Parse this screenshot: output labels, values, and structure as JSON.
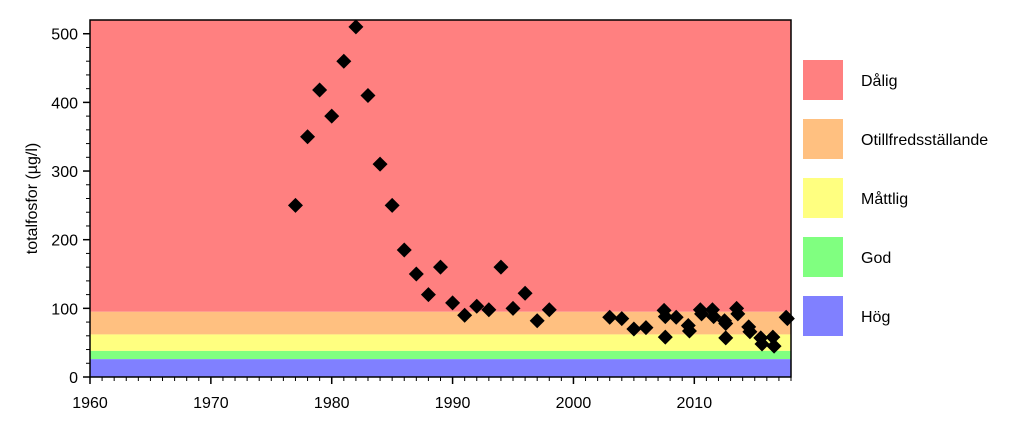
{
  "chart_data": {
    "type": "scatter",
    "ylabel": "totalfosfor (µg/l)",
    "xlim": [
      1960,
      2018
    ],
    "ylim": [
      0,
      520
    ],
    "x_ticks": [
      "1960",
      "1970",
      "1980",
      "1990",
      "2000",
      "2010"
    ],
    "y_ticks": [
      "0",
      "100",
      "200",
      "300",
      "400",
      "500"
    ],
    "grid": false,
    "legend_position": "right",
    "classes": [
      {
        "name": "Dålig",
        "from": 95,
        "to": 520,
        "color": "#ff8080"
      },
      {
        "name": "Otillfredsställande",
        "from": 62,
        "to": 95,
        "color": "#ffc080"
      },
      {
        "name": "Måttlig",
        "from": 38,
        "to": 62,
        "color": "#ffff80"
      },
      {
        "name": "God",
        "from": 26,
        "to": 38,
        "color": "#80ff80"
      },
      {
        "name": "Hög",
        "from": 0,
        "to": 26,
        "color": "#8080ff"
      }
    ],
    "marker_color": "#000000",
    "points": [
      {
        "x": 1977,
        "y": 250
      },
      {
        "x": 1978,
        "y": 350
      },
      {
        "x": 1979,
        "y": 418
      },
      {
        "x": 1980,
        "y": 380
      },
      {
        "x": 1981,
        "y": 460
      },
      {
        "x": 1982,
        "y": 510
      },
      {
        "x": 1983,
        "y": 410
      },
      {
        "x": 1984,
        "y": 310
      },
      {
        "x": 1985,
        "y": 250
      },
      {
        "x": 1986,
        "y": 185
      },
      {
        "x": 1987,
        "y": 150
      },
      {
        "x": 1988,
        "y": 120
      },
      {
        "x": 1989,
        "y": 160
      },
      {
        "x": 1990,
        "y": 108
      },
      {
        "x": 1991,
        "y": 90
      },
      {
        "x": 1992,
        "y": 103
      },
      {
        "x": 1993,
        "y": 98
      },
      {
        "x": 1994,
        "y": 160
      },
      {
        "x": 1995,
        "y": 100
      },
      {
        "x": 1996,
        "y": 122
      },
      {
        "x": 1997,
        "y": 82
      },
      {
        "x": 1998,
        "y": 98
      },
      {
        "x": 2003,
        "y": 87
      },
      {
        "x": 2004,
        "y": 85
      },
      {
        "x": 2005,
        "y": 70
      },
      {
        "x": 2006,
        "y": 72
      },
      {
        "x": 2007.5,
        "y": 97
      },
      {
        "x": 2007.6,
        "y": 88
      },
      {
        "x": 2007.6,
        "y": 58
      },
      {
        "x": 2008.5,
        "y": 87
      },
      {
        "x": 2009.5,
        "y": 75
      },
      {
        "x": 2009.6,
        "y": 67
      },
      {
        "x": 2010.5,
        "y": 98
      },
      {
        "x": 2010.6,
        "y": 92
      },
      {
        "x": 2011.5,
        "y": 98
      },
      {
        "x": 2011.6,
        "y": 88
      },
      {
        "x": 2012.5,
        "y": 82
      },
      {
        "x": 2012.6,
        "y": 78
      },
      {
        "x": 2012.6,
        "y": 57
      },
      {
        "x": 2013.5,
        "y": 100
      },
      {
        "x": 2013.6,
        "y": 92
      },
      {
        "x": 2014.5,
        "y": 73
      },
      {
        "x": 2014.6,
        "y": 66
      },
      {
        "x": 2015.5,
        "y": 57
      },
      {
        "x": 2015.6,
        "y": 48
      },
      {
        "x": 2016.5,
        "y": 58
      },
      {
        "x": 2016.6,
        "y": 45
      },
      {
        "x": 2017.6,
        "y": 87
      },
      {
        "x": 2017.7,
        "y": 85
      }
    ]
  }
}
